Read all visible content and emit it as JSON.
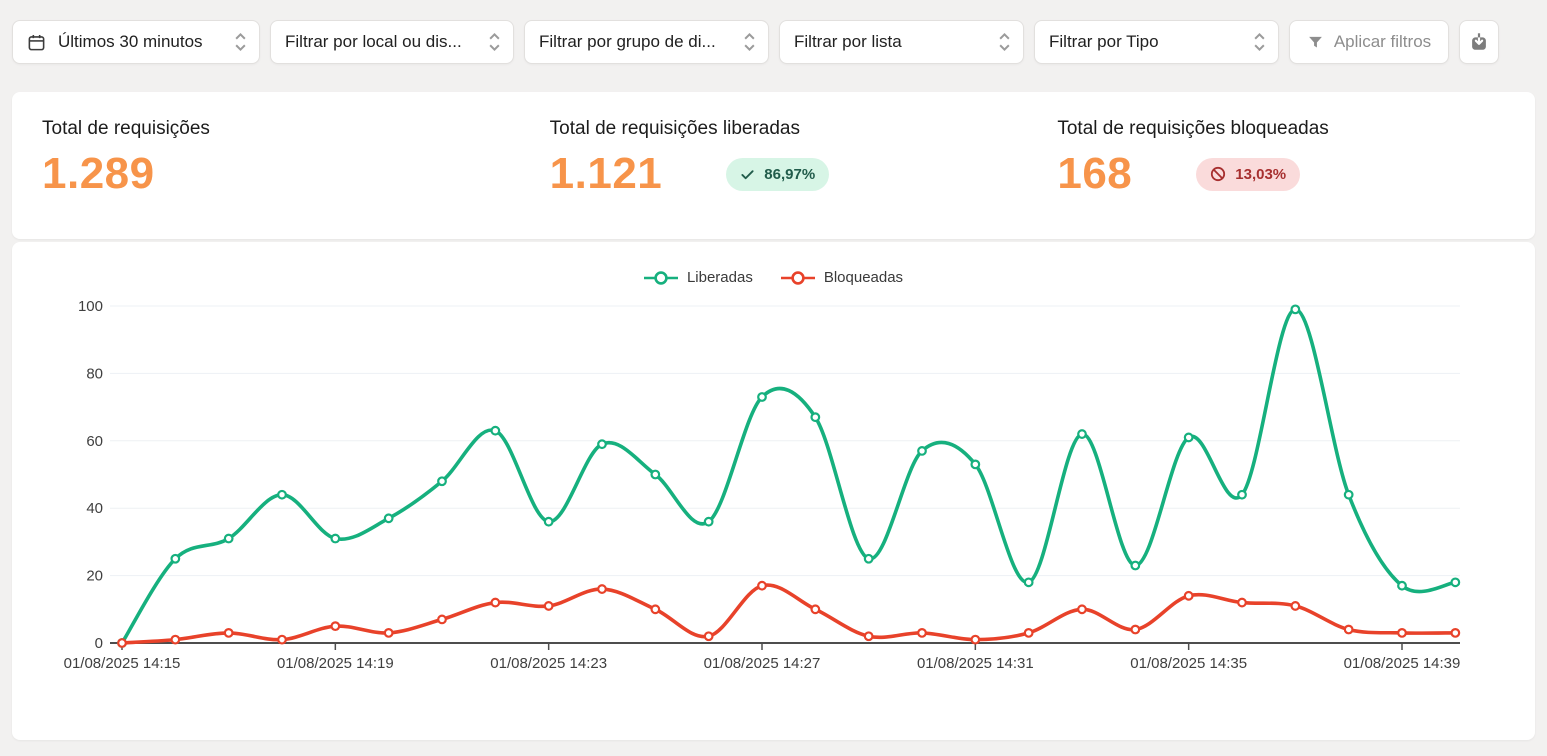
{
  "filter_bar": {
    "date_range_label": "Últimos 30 minutos",
    "filters": [
      {
        "label": "Filtrar por local ou dis..."
      },
      {
        "label": "Filtrar por grupo de di..."
      },
      {
        "label": "Filtrar por lista"
      },
      {
        "label": "Filtrar por Tipo"
      }
    ],
    "apply_button_label": "Aplicar filtros"
  },
  "stats": {
    "total": {
      "label": "Total de requisições",
      "value": "1.289"
    },
    "released": {
      "label": "Total de requisições liberadas",
      "value": "1.121",
      "badge_text": "86,97%"
    },
    "blocked": {
      "label": "Total de requisições bloqueadas",
      "value": "168",
      "badge_text": "13,03%"
    }
  },
  "colors": {
    "page_bg": "#f2f1f0",
    "accent_number_orange": "#F7944A",
    "released_green": "#16B07E",
    "blocked_red": "#E8422A",
    "released_badge_bg": "#D7F5E6",
    "released_badge_text": "#215C4B",
    "blocked_badge_bg": "#FADBDB",
    "blocked_badge_text": "#A72F2F",
    "grid_line": "#EDF1F4",
    "axis_line": "#4D4D4D"
  },
  "chart_data": {
    "type": "line",
    "title": "",
    "x_date": "01/08/2025",
    "x": [
      "14:15",
      "14:16",
      "14:17",
      "14:18",
      "14:19",
      "14:20",
      "14:21",
      "14:22",
      "14:23",
      "14:24",
      "14:25",
      "14:26",
      "14:27",
      "14:28",
      "14:29",
      "14:30",
      "14:31",
      "14:32",
      "14:33",
      "14:34",
      "14:35",
      "14:36",
      "14:37",
      "14:38",
      "14:39",
      "14:40"
    ],
    "x_tick_labels": [
      "01/08/2025 14:15",
      "01/08/2025 14:19",
      "01/08/2025 14:23",
      "01/08/2025 14:27",
      "01/08/2025 14:31",
      "01/08/2025 14:35",
      "01/08/2025 14:39"
    ],
    "x_tick_every": 4,
    "series": [
      {
        "name": "Liberadas",
        "color": "#16B07E",
        "values": [
          0,
          25,
          31,
          44,
          31,
          37,
          48,
          63,
          36,
          59,
          50,
          36,
          73,
          67,
          25,
          57,
          53,
          18,
          62,
          23,
          61,
          44,
          99,
          44,
          17,
          18
        ]
      },
      {
        "name": "Bloqueadas",
        "color": "#E8422A",
        "values": [
          0,
          1,
          3,
          1,
          5,
          3,
          7,
          12,
          11,
          16,
          10,
          2,
          17,
          10,
          2,
          3,
          1,
          3,
          10,
          4,
          14,
          12,
          11,
          4,
          3,
          3
        ]
      }
    ],
    "ylim": [
      0,
      100
    ],
    "y_ticks": [
      0,
      20,
      40,
      60,
      80,
      100
    ],
    "grid": true,
    "legend_position": "top-center",
    "smooth": true
  }
}
